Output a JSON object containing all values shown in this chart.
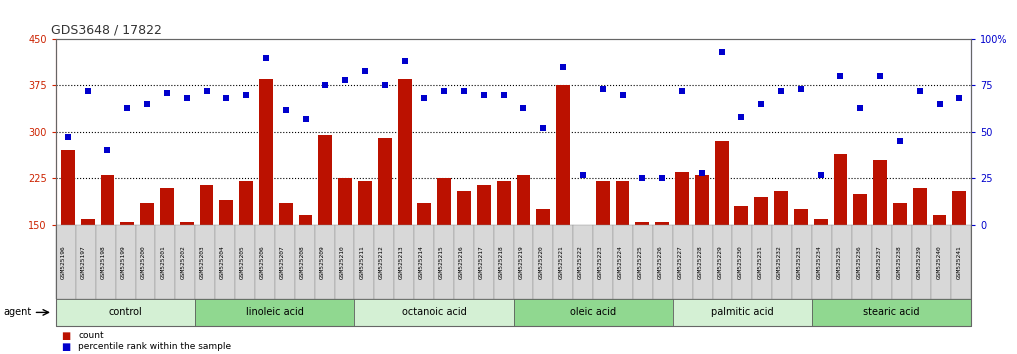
{
  "title": "GDS3648 / 17822",
  "samples": [
    "GSM525196",
    "GSM525197",
    "GSM525198",
    "GSM525199",
    "GSM525200",
    "GSM525201",
    "GSM525202",
    "GSM525203",
    "GSM525204",
    "GSM525205",
    "GSM525206",
    "GSM525207",
    "GSM525208",
    "GSM525209",
    "GSM525210",
    "GSM525211",
    "GSM525212",
    "GSM525213",
    "GSM525214",
    "GSM525215",
    "GSM525216",
    "GSM525217",
    "GSM525218",
    "GSM525219",
    "GSM525220",
    "GSM525221",
    "GSM525222",
    "GSM525223",
    "GSM525224",
    "GSM525225",
    "GSM525226",
    "GSM525227",
    "GSM525228",
    "GSM525229",
    "GSM525230",
    "GSM525231",
    "GSM525232",
    "GSM525233",
    "GSM525234",
    "GSM525235",
    "GSM525236",
    "GSM525237",
    "GSM525238",
    "GSM525239",
    "GSM525240",
    "GSM525241"
  ],
  "counts": [
    270,
    160,
    230,
    155,
    185,
    210,
    155,
    215,
    190,
    220,
    385,
    185,
    165,
    295,
    225,
    220,
    290,
    385,
    185,
    225,
    205,
    215,
    220,
    230,
    175,
    375,
    150,
    220,
    220,
    155,
    155,
    235,
    230,
    285,
    180,
    195,
    205,
    175,
    160,
    265,
    200,
    255,
    185,
    210,
    165,
    205
  ],
  "percentiles": [
    47,
    72,
    40,
    63,
    65,
    71,
    68,
    72,
    68,
    70,
    90,
    62,
    57,
    75,
    78,
    83,
    75,
    88,
    68,
    72,
    72,
    70,
    70,
    63,
    52,
    85,
    27,
    73,
    70,
    25,
    25,
    72,
    28,
    93,
    58,
    65,
    72,
    73,
    27,
    80,
    63,
    80,
    45,
    72,
    65,
    68
  ],
  "groups": [
    {
      "label": "control",
      "start": 0,
      "end": 7,
      "color": "#d4f0d4"
    },
    {
      "label": "linoleic acid",
      "start": 7,
      "end": 15,
      "color": "#90d890"
    },
    {
      "label": "octanoic acid",
      "start": 15,
      "end": 23,
      "color": "#d4f0d4"
    },
    {
      "label": "oleic acid",
      "start": 23,
      "end": 31,
      "color": "#90d890"
    },
    {
      "label": "palmitic acid",
      "start": 31,
      "end": 38,
      "color": "#d4f0d4"
    },
    {
      "label": "stearic acid",
      "start": 38,
      "end": 46,
      "color": "#90d890"
    }
  ],
  "left_ylim": [
    150,
    450
  ],
  "left_yticks": [
    150,
    225,
    300,
    375,
    450
  ],
  "right_ylim": [
    0,
    100
  ],
  "right_yticks": [
    0,
    25,
    50,
    75,
    100
  ],
  "right_yticklabels": [
    "0",
    "25",
    "50",
    "75",
    "100%"
  ],
  "bar_color": "#bb1100",
  "dot_color": "#0000cc",
  "plot_bg": "#ffffff",
  "tickband_bg": "#d8d8d8",
  "left_axis_color": "#cc2200",
  "right_axis_color": "#0000cc",
  "gridline_color": "#000000",
  "agent_label": "agent",
  "legend_count": "count",
  "legend_percentile": "percentile rank within the sample",
  "dot_size": 20
}
